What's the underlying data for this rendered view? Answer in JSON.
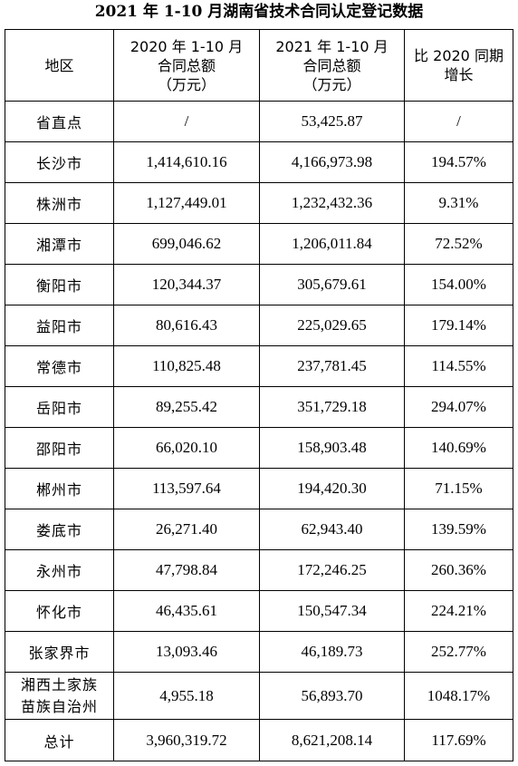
{
  "title": "2021 年 1-10 月湖南省技术合同认定登记数据",
  "header": {
    "region": "地区",
    "col2020": [
      "2020 年 1-10 月",
      "合同总额",
      "（万元）"
    ],
    "col2021": [
      "2021 年 1-10 月",
      "合同总额",
      "（万元）"
    ],
    "growth": [
      "比 2020 同期",
      "增长"
    ]
  },
  "rows": [
    {
      "region": [
        "省直点"
      ],
      "v2020": "/",
      "v2021": "53,425.87",
      "growth": "/"
    },
    {
      "region": [
        "长沙市"
      ],
      "v2020": "1,414,610.16",
      "v2021": "4,166,973.98",
      "growth": "194.57%"
    },
    {
      "region": [
        "株洲市"
      ],
      "v2020": "1,127,449.01",
      "v2021": "1,232,432.36",
      "growth": "9.31%"
    },
    {
      "region": [
        "湘潭市"
      ],
      "v2020": "699,046.62",
      "v2021": "1,206,011.84",
      "growth": "72.52%"
    },
    {
      "region": [
        "衡阳市"
      ],
      "v2020": "120,344.37",
      "v2021": "305,679.61",
      "growth": "154.00%"
    },
    {
      "region": [
        "益阳市"
      ],
      "v2020": "80,616.43",
      "v2021": "225,029.65",
      "growth": "179.14%"
    },
    {
      "region": [
        "常德市"
      ],
      "v2020": "110,825.48",
      "v2021": "237,781.45",
      "growth": "114.55%"
    },
    {
      "region": [
        "岳阳市"
      ],
      "v2020": "89,255.42",
      "v2021": "351,729.18",
      "growth": "294.07%"
    },
    {
      "region": [
        "邵阳市"
      ],
      "v2020": "66,020.10",
      "v2021": "158,903.48",
      "growth": "140.69%"
    },
    {
      "region": [
        "郴州市"
      ],
      "v2020": "113,597.64",
      "v2021": "194,420.30",
      "growth": "71.15%"
    },
    {
      "region": [
        "娄底市"
      ],
      "v2020": "26,271.40",
      "v2021": "62,943.40",
      "growth": "139.59%"
    },
    {
      "region": [
        "永州市"
      ],
      "v2020": "47,798.84",
      "v2021": "172,246.25",
      "growth": "260.36%"
    },
    {
      "region": [
        "怀化市"
      ],
      "v2020": "46,435.61",
      "v2021": "150,547.34",
      "growth": "224.21%"
    },
    {
      "region": [
        "张家界市"
      ],
      "v2020": "13,093.46",
      "v2021": "46,189.73",
      "growth": "252.77%"
    },
    {
      "region": [
        "湘西土家族",
        "苗族自治州"
      ],
      "v2020": "4,955.18",
      "v2021": "56,893.70",
      "growth": "1048.17%"
    },
    {
      "region": [
        "总计"
      ],
      "v2020": "3,960,319.72",
      "v2021": "8,621,208.14",
      "growth": "117.69%"
    }
  ]
}
